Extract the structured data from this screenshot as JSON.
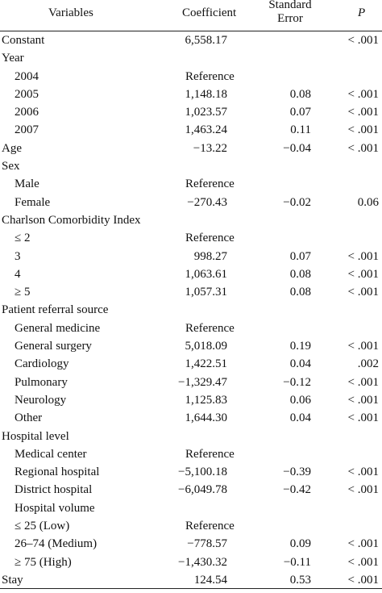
{
  "header": {
    "variables": "Variables",
    "coefficient": "Coefficient",
    "se_line1": "Standard",
    "se_line2": "Error",
    "p": "P"
  },
  "rows": [
    {
      "label": "Constant",
      "sub": false,
      "coef": "6,558.17",
      "se": "",
      "p": "< .001"
    },
    {
      "label": "Year",
      "sub": false,
      "coef": "",
      "se": "",
      "p": ""
    },
    {
      "label": "2004",
      "sub": true,
      "coef": "Reference",
      "se": "",
      "p": ""
    },
    {
      "label": "2005",
      "sub": true,
      "coef": "1,148.18",
      "se": "0.08",
      "p": "< .001"
    },
    {
      "label": "2006",
      "sub": true,
      "coef": "1,023.57",
      "se": "0.07",
      "p": "< .001"
    },
    {
      "label": "2007",
      "sub": true,
      "coef": "1,463.24",
      "se": "0.11",
      "p": "< .001"
    },
    {
      "label": "Age",
      "sub": false,
      "coef": "−13.22",
      "se": "−0.04",
      "p": "< .001"
    },
    {
      "label": "Sex",
      "sub": false,
      "coef": "",
      "se": "",
      "p": ""
    },
    {
      "label": "Male",
      "sub": true,
      "coef": "Reference",
      "se": "",
      "p": ""
    },
    {
      "label": "Female",
      "sub": true,
      "coef": "−270.43",
      "se": "−0.02",
      "p": "0.06"
    },
    {
      "label": "Charlson Comorbidity Index",
      "sub": false,
      "coef": "",
      "se": "",
      "p": ""
    },
    {
      "label": "≤ 2",
      "sub": true,
      "coef": "Reference",
      "se": "",
      "p": ""
    },
    {
      "label": "3",
      "sub": true,
      "coef": "998.27",
      "se": "0.07",
      "p": "< .001"
    },
    {
      "label": "4",
      "sub": true,
      "coef": "1,063.61",
      "se": "0.08",
      "p": "< .001"
    },
    {
      "label": "≥ 5",
      "sub": true,
      "coef": "1,057.31",
      "se": "0.08",
      "p": "< .001"
    },
    {
      "label": "Patient referral source",
      "sub": false,
      "coef": "",
      "se": "",
      "p": ""
    },
    {
      "label": "General medicine",
      "sub": true,
      "coef": "Reference",
      "se": "",
      "p": ""
    },
    {
      "label": "General surgery",
      "sub": true,
      "coef": "5,018.09",
      "se": "0.19",
      "p": "< .001"
    },
    {
      "label": "Cardiology",
      "sub": true,
      "coef": "1,422.51",
      "se": "0.04",
      "p": ".002"
    },
    {
      "label": "Pulmonary",
      "sub": true,
      "coef": "−1,329.47",
      "se": "−0.12",
      "p": "< .001"
    },
    {
      "label": "Neurology",
      "sub": true,
      "coef": "1,125.83",
      "se": "0.06",
      "p": "< .001"
    },
    {
      "label": "Other",
      "sub": true,
      "coef": "1,644.30",
      "se": "0.04",
      "p": "< .001"
    },
    {
      "label": "Hospital level",
      "sub": false,
      "coef": "",
      "se": "",
      "p": ""
    },
    {
      "label": "Medical center",
      "sub": true,
      "coef": "Reference",
      "se": "",
      "p": ""
    },
    {
      "label": "Regional hospital",
      "sub": true,
      "coef": "−5,100.18",
      "se": "−0.39",
      "p": "< .001"
    },
    {
      "label": "District hospital",
      "sub": true,
      "coef": "−6,049.78",
      "se": "−0.42",
      "p": "< .001"
    },
    {
      "label": "Hospital volume",
      "sub": true,
      "coef": "",
      "se": "",
      "p": ""
    },
    {
      "label": "≤ 25 (Low)",
      "sub": true,
      "coef": "Reference",
      "se": "",
      "p": ""
    },
    {
      "label": "26–74 (Medium)",
      "sub": true,
      "coef": "−778.57",
      "se": "0.09",
      "p": "< .001"
    },
    {
      "label": "≥ 75 (High)",
      "sub": true,
      "coef": "−1,430.32",
      "se": "−0.11",
      "p": "< .001"
    },
    {
      "label": "Stay",
      "sub": false,
      "coef": "124.54",
      "se": "0.53",
      "p": "< .001"
    }
  ]
}
